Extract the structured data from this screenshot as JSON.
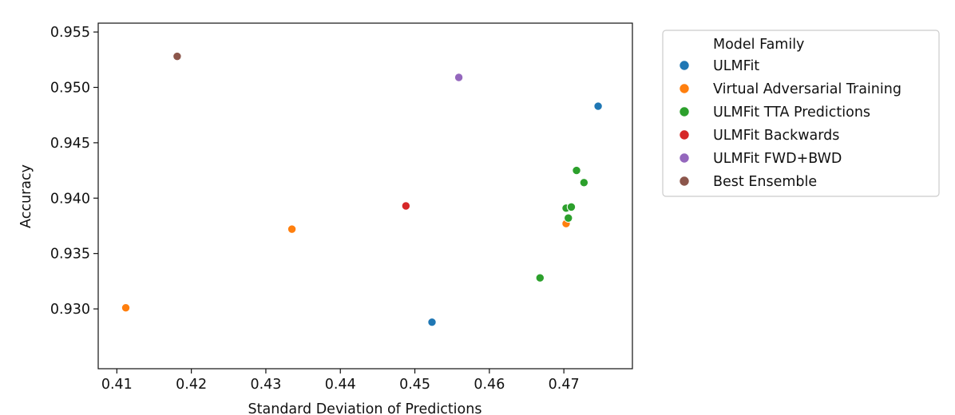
{
  "chart_data": {
    "type": "scatter",
    "title": "",
    "xlabel": "Standard Deviation of Predictions",
    "ylabel": "Accuracy",
    "xlim": [
      0.4075,
      0.4792
    ],
    "ylim": [
      0.9246,
      0.9558
    ],
    "xticks": [
      "0.41",
      "0.42",
      "0.43",
      "0.44",
      "0.45",
      "0.46",
      "0.47"
    ],
    "xtick_values": [
      0.41,
      0.42,
      0.43,
      0.44,
      0.45,
      0.46,
      0.47
    ],
    "yticks": [
      "0.930",
      "0.935",
      "0.940",
      "0.945",
      "0.950",
      "0.955"
    ],
    "ytick_values": [
      0.93,
      0.935,
      0.94,
      0.945,
      0.95,
      0.955
    ],
    "grid": false,
    "legend": {
      "title": "Model Family",
      "placement": "outside-right-top"
    },
    "series": [
      {
        "name": "ULMFit",
        "color": "#1f77b4",
        "points": [
          [
            0.4746,
            0.9483
          ],
          [
            0.4523,
            0.9288
          ]
        ]
      },
      {
        "name": "Virtual Adversarial Training",
        "color": "#ff7f0e",
        "points": [
          [
            0.4112,
            0.9301
          ],
          [
            0.4335,
            0.9372
          ],
          [
            0.4703,
            0.9377
          ]
        ]
      },
      {
        "name": "ULMFit TTA Predictions",
        "color": "#2ca02c",
        "points": [
          [
            0.4717,
            0.9425
          ],
          [
            0.4727,
            0.9414
          ],
          [
            0.4703,
            0.9391
          ],
          [
            0.471,
            0.9392
          ],
          [
            0.4706,
            0.9382
          ],
          [
            0.4668,
            0.9328
          ]
        ]
      },
      {
        "name": "ULMFit Backwards",
        "color": "#d62728",
        "points": [
          [
            0.4488,
            0.9393
          ]
        ]
      },
      {
        "name": "ULMFit FWD+BWD",
        "color": "#9467bd",
        "points": [
          [
            0.4559,
            0.9509
          ]
        ]
      },
      {
        "name": "Best Ensemble",
        "color": "#8c564b",
        "points": [
          [
            0.4181,
            0.9528
          ]
        ]
      }
    ]
  }
}
